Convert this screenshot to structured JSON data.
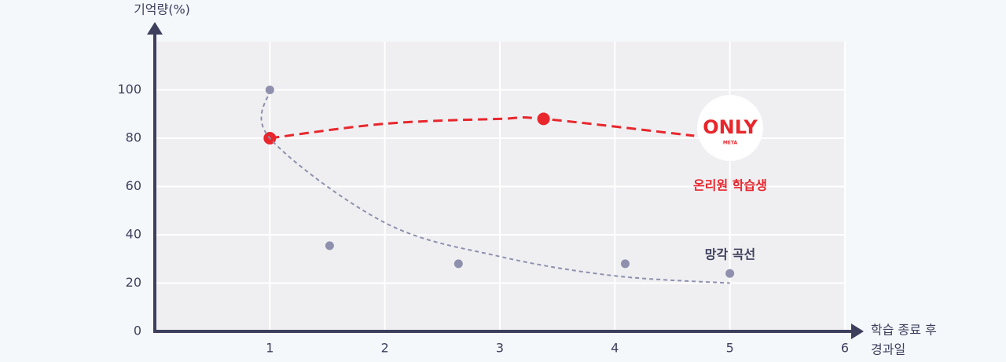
{
  "chart_data": {
    "type": "scatter",
    "y_label": "기억량(%)",
    "x_label": [
      "학습 종료 후",
      "경과일"
    ],
    "xlim": [
      0,
      6
    ],
    "ylim": [
      0,
      120
    ],
    "xticks": [
      1,
      2,
      3,
      4,
      5,
      6
    ],
    "yticks": [
      0,
      20,
      40,
      60,
      80,
      100
    ],
    "grid": true,
    "logo": {
      "text": "ONLY",
      "sub": "META"
    },
    "series": [
      {
        "name": "온리원 학습생",
        "color": "#e8262c",
        "mode": "line",
        "x": [
          1,
          2,
          3,
          3.38,
          4.69
        ],
        "values": [
          80,
          86,
          88,
          88,
          81
        ]
      },
      {
        "color": "#e8262c",
        "mode": "markers",
        "x": [
          1,
          3.38
        ],
        "values": [
          80,
          88
        ]
      },
      {
        "name": "망각 곡선",
        "color": "#8e90ad",
        "mode": "line",
        "x": [
          1,
          1,
          2,
          3,
          4,
          5
        ],
        "values": [
          100,
          80,
          45,
          31,
          23,
          20
        ]
      },
      {
        "color": "#8e90ad",
        "mode": "markers",
        "x": [
          1,
          1.52,
          2.64,
          4.09,
          5
        ],
        "values": [
          100,
          35.5,
          28,
          28,
          24
        ]
      }
    ]
  }
}
